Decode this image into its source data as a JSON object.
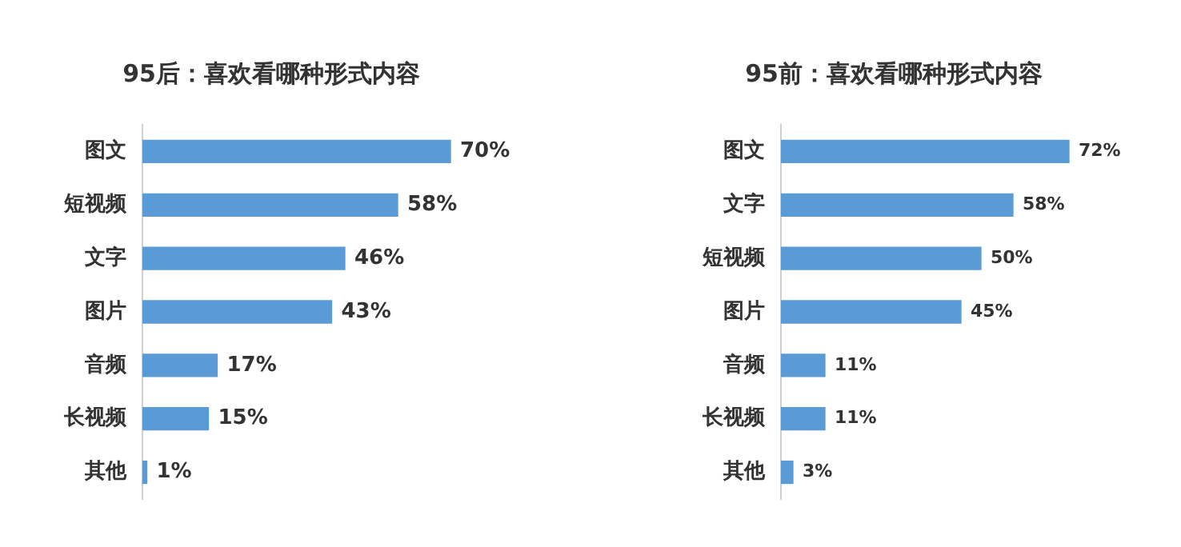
{
  "chart_data": [
    {
      "type": "bar",
      "orientation": "horizontal",
      "title": "95后：喜欢看哪种形式内容",
      "categories": [
        "图文",
        "短视频",
        "文字",
        "图片",
        "音频",
        "长视频",
        "其他"
      ],
      "values": [
        70,
        58,
        46,
        43,
        17,
        15,
        1
      ],
      "value_labels": [
        "70%",
        "58%",
        "46%",
        "43%",
        "17%",
        "15%",
        "1%"
      ],
      "color": "#5b9bd5",
      "legend": false,
      "tick_labels": "y"
    },
    {
      "type": "bar",
      "orientation": "horizontal",
      "title": "95前：喜欢看哪种形式内容",
      "categories": [
        "图文",
        "文字",
        "短视频",
        "图片",
        "音频",
        "长视频",
        "其他"
      ],
      "values": [
        72,
        58,
        50,
        45,
        11,
        11,
        3
      ],
      "value_labels": [
        "72%",
        "58%",
        "50%",
        "45%",
        "11%",
        "11%",
        "3%"
      ],
      "color": "#5b9bd5",
      "legend": false,
      "tick_labels": "y"
    }
  ]
}
